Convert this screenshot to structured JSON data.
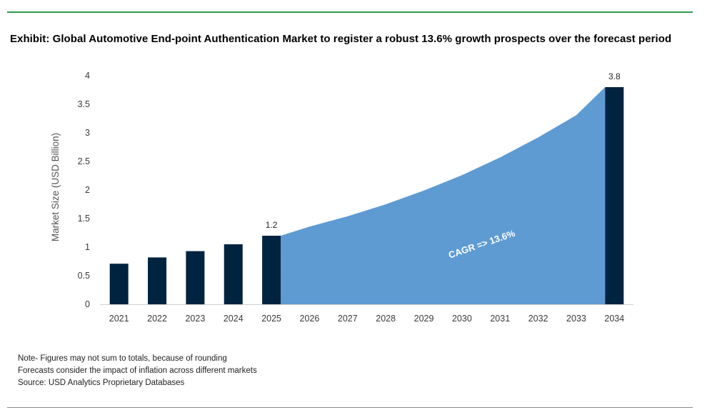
{
  "title": "Exhibit: Global Automotive End-point Authentication Market to register a robust 13.6% growth prospects over the forecast period",
  "notes": [
    "Note- Figures may not sum to totals, because of rounding",
    "Forecasts consider the impact of inflation across different markets",
    "Source: USD Analytics Proprietary Databases"
  ],
  "colors": {
    "bar": "#002340",
    "area": "#5e9bd3",
    "title_rule": "#2e9a4e",
    "bottom_rule": "#8a8a8a",
    "axis_text": "#3a3a3a"
  },
  "chart_data": {
    "type": "bar",
    "ylabel": "Market Size (USD Billion)",
    "xlabel": "",
    "ylim": [
      0,
      4
    ],
    "yticks": [
      "0",
      "0.5",
      "1",
      "1.5",
      "2",
      "2.5",
      "3",
      "3.5",
      "4"
    ],
    "categories": [
      "2021",
      "2022",
      "2023",
      "2024",
      "2025",
      "2026",
      "2027",
      "2028",
      "2029",
      "2030",
      "2031",
      "2032",
      "2033",
      "2034"
    ],
    "bars": [
      {
        "category": "2021",
        "value": 0.71
      },
      {
        "category": "2022",
        "value": 0.82
      },
      {
        "category": "2023",
        "value": 0.93
      },
      {
        "category": "2024",
        "value": 1.05
      },
      {
        "category": "2025",
        "value": 1.2,
        "label": "1.2"
      },
      {
        "category": "2034",
        "value": 3.8,
        "label": "3.8"
      }
    ],
    "area": {
      "categories": [
        "2025",
        "2026",
        "2027",
        "2028",
        "2029",
        "2030",
        "2031",
        "2032",
        "2033",
        "2034"
      ],
      "values": [
        1.2,
        1.36,
        1.54,
        1.75,
        1.99,
        2.26,
        2.57,
        2.92,
        3.31,
        3.8
      ]
    },
    "annotation": "CAGR => 13.6%",
    "grid": false
  }
}
